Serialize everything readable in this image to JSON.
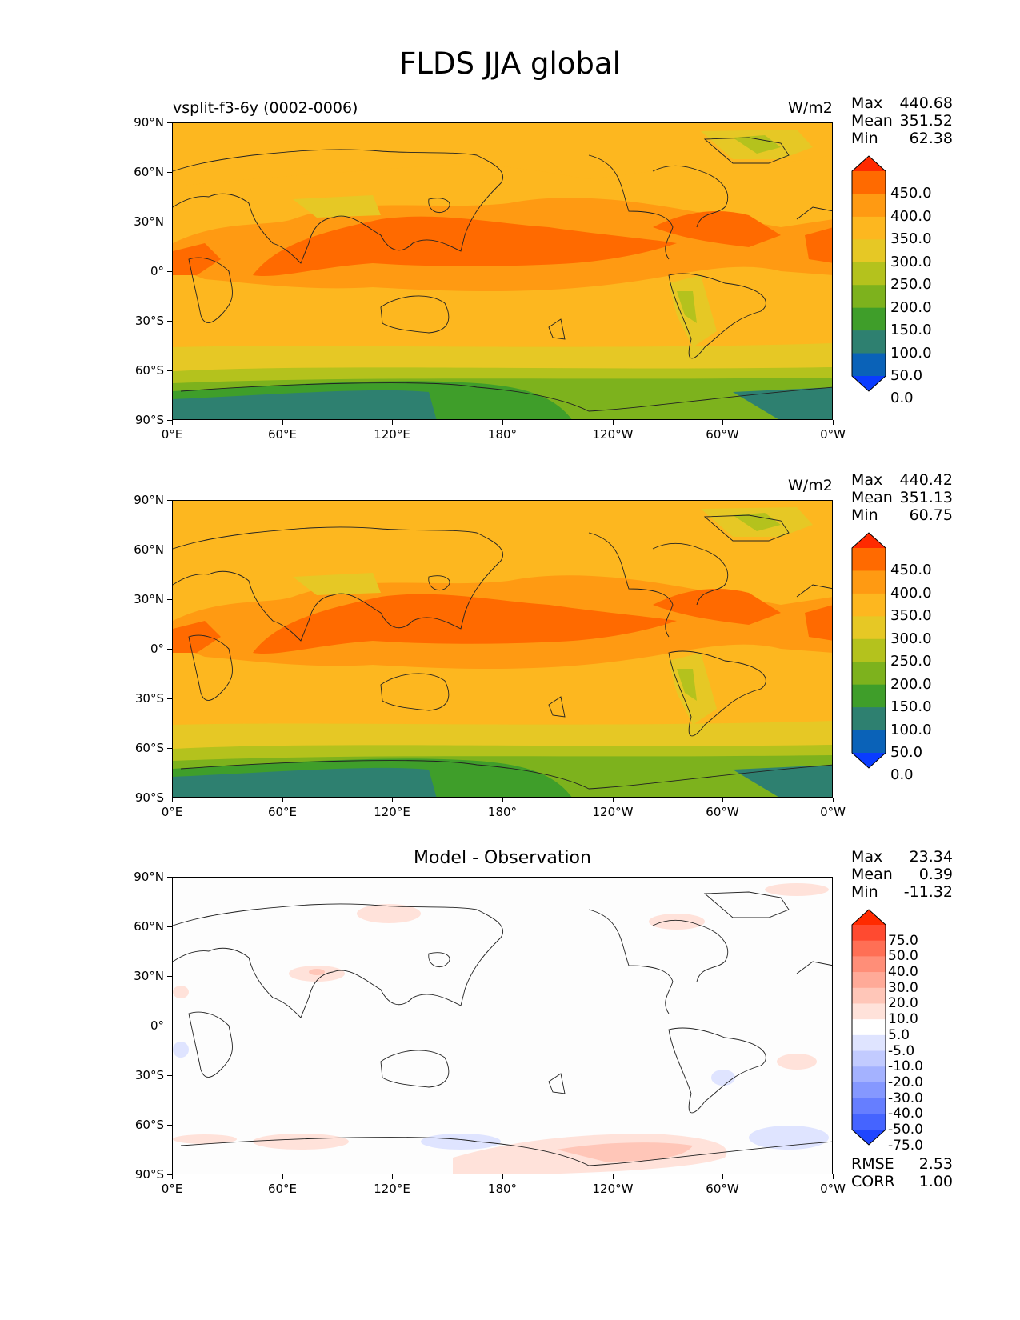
{
  "figure_title": "FLDS JJA global",
  "panels": [
    {
      "left_title": "vsplit-f3-6y (0002-0006)",
      "center_title": "",
      "units": "W/m2",
      "stats": {
        "max_label": "Max",
        "max": "440.68",
        "mean_label": "Mean",
        "mean": "351.52",
        "min_label": "Min",
        "min": "62.38"
      },
      "colorbar": {
        "labels": [
          "450.0",
          "400.0",
          "350.0",
          "300.0",
          "250.0",
          "200.0",
          "150.0",
          "100.0",
          "50.0",
          "0.0"
        ],
        "colors": [
          "#ff2a00",
          "#ff6a00",
          "#ff9a12",
          "#fdb71f",
          "#e6c825",
          "#b4c21d",
          "#7db21d",
          "#3f9e2a",
          "#2e8070",
          "#0a62b8",
          "#0a3cff"
        ]
      }
    },
    {
      "left_title": "",
      "center_title": "",
      "units": "W/m2",
      "stats": {
        "max_label": "Max",
        "max": "440.42",
        "mean_label": "Mean",
        "mean": "351.13",
        "min_label": "Min",
        "min": "60.75"
      },
      "colorbar": {
        "labels": [
          "450.0",
          "400.0",
          "350.0",
          "300.0",
          "250.0",
          "200.0",
          "150.0",
          "100.0",
          "50.0",
          "0.0"
        ],
        "colors": [
          "#ff2a00",
          "#ff6a00",
          "#ff9a12",
          "#fdb71f",
          "#e6c825",
          "#b4c21d",
          "#7db21d",
          "#3f9e2a",
          "#2e8070",
          "#0a62b8",
          "#0a3cff"
        ]
      }
    },
    {
      "left_title": "",
      "center_title": "Model - Observation",
      "units": "",
      "stats": {
        "max_label": "Max",
        "max": "23.34",
        "mean_label": "Mean",
        "mean": "0.39",
        "min_label": "Min",
        "min": "-11.32"
      },
      "extra_stats": {
        "rmse_label": "RMSE",
        "rmse": "2.53",
        "corr_label": "CORR",
        "corr": "1.00"
      },
      "colorbar": {
        "labels": [
          "75.0",
          "50.0",
          "40.0",
          "30.0",
          "20.0",
          "10.0",
          "5.0",
          "-5.0",
          "-10.0",
          "-20.0",
          "-30.0",
          "-40.0",
          "-50.0",
          "-75.0"
        ],
        "colors": [
          "#ff2a00",
          "#ff4a30",
          "#ff6f55",
          "#ff8e78",
          "#ffaa98",
          "#ffc6b8",
          "#ffe2da",
          "#ffffff",
          "#dfe4ff",
          "#c2cbff",
          "#a4b2ff",
          "#8598ff",
          "#667eff",
          "#4564ff",
          "#1f46ff"
        ]
      }
    }
  ],
  "axes": {
    "lat_ticks": [
      "90°N",
      "60°N",
      "30°N",
      "0°",
      "30°S",
      "60°S",
      "90°S"
    ],
    "lon_ticks": [
      "0°E",
      "60°E",
      "120°E",
      "180°",
      "120°W",
      "60°W",
      "0°W"
    ]
  }
}
